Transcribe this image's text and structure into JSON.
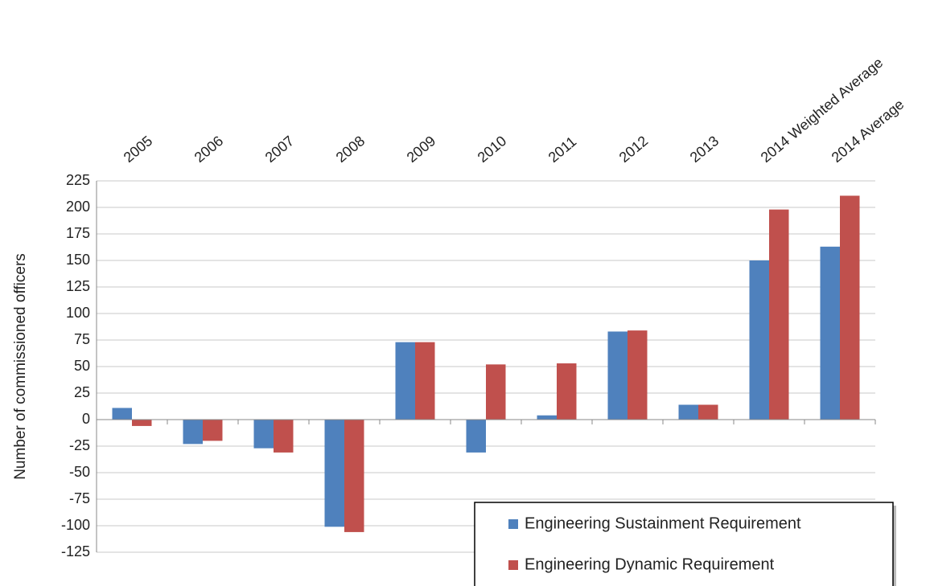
{
  "chart_data": {
    "type": "bar",
    "y_label": "Number of commissioned officers",
    "categories": [
      "2005",
      "2006",
      "2007",
      "2008",
      "2009",
      "2010",
      "2011",
      "2012",
      "2013",
      "2014 Weighted Average",
      "2014 Average"
    ],
    "series": [
      {
        "name": "Engineering Sustainment Requirement",
        "color": "#4f81bd",
        "values": [
          11,
          -23,
          -27,
          -101,
          73,
          -31,
          4,
          83,
          14,
          150,
          163
        ]
      },
      {
        "name": "Engineering Dynamic Requirement",
        "color": "#c0504d",
        "values": [
          -6,
          -20,
          -31,
          -106,
          73,
          52,
          53,
          84,
          14,
          198,
          211
        ]
      }
    ],
    "ylim": [
      -125,
      225
    ],
    "yticks": [
      -125,
      -100,
      -75,
      -50,
      -25,
      0,
      25,
      50,
      75,
      100,
      125,
      150,
      175,
      200,
      225
    ],
    "grid": true,
    "legend": "bottom-right"
  }
}
